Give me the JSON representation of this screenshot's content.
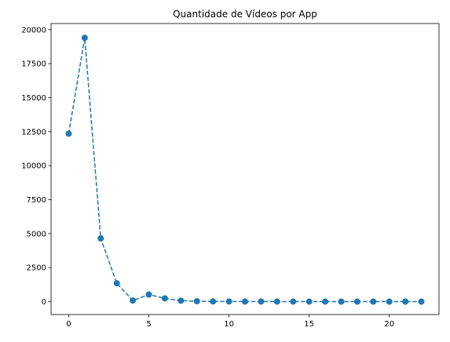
{
  "chart_data": {
    "type": "line",
    "title": "Quantidade de Vídeos por App",
    "xlabel": "",
    "ylabel": "",
    "x": [
      0,
      1,
      2,
      3,
      4,
      5,
      6,
      7,
      8,
      9,
      10,
      11,
      12,
      13,
      14,
      15,
      16,
      17,
      18,
      19,
      20,
      21,
      22
    ],
    "series": [
      {
        "values": [
          12350,
          19400,
          4650,
          1350,
          80,
          520,
          240,
          70,
          30,
          15,
          10,
          8,
          6,
          5,
          4,
          3,
          3,
          2,
          2,
          2,
          1,
          1,
          1
        ],
        "color": "#1f77b4",
        "line_style": "dashed",
        "marker": "circle"
      }
    ],
    "xlim": [
      -1.1,
      23.1
    ],
    "ylim": [
      -950,
      20450
    ],
    "x_ticks": [
      0,
      5,
      10,
      15,
      20
    ],
    "x_tick_labels": [
      "0",
      "5",
      "10",
      "15",
      "20"
    ],
    "y_ticks": [
      0,
      2500,
      5000,
      7500,
      10000,
      12500,
      15000,
      17500,
      20000
    ],
    "y_tick_labels": [
      "0",
      "2500",
      "5000",
      "7500",
      "10000",
      "12500",
      "15000",
      "17500",
      "20000"
    ],
    "grid": false,
    "legend": "none"
  }
}
